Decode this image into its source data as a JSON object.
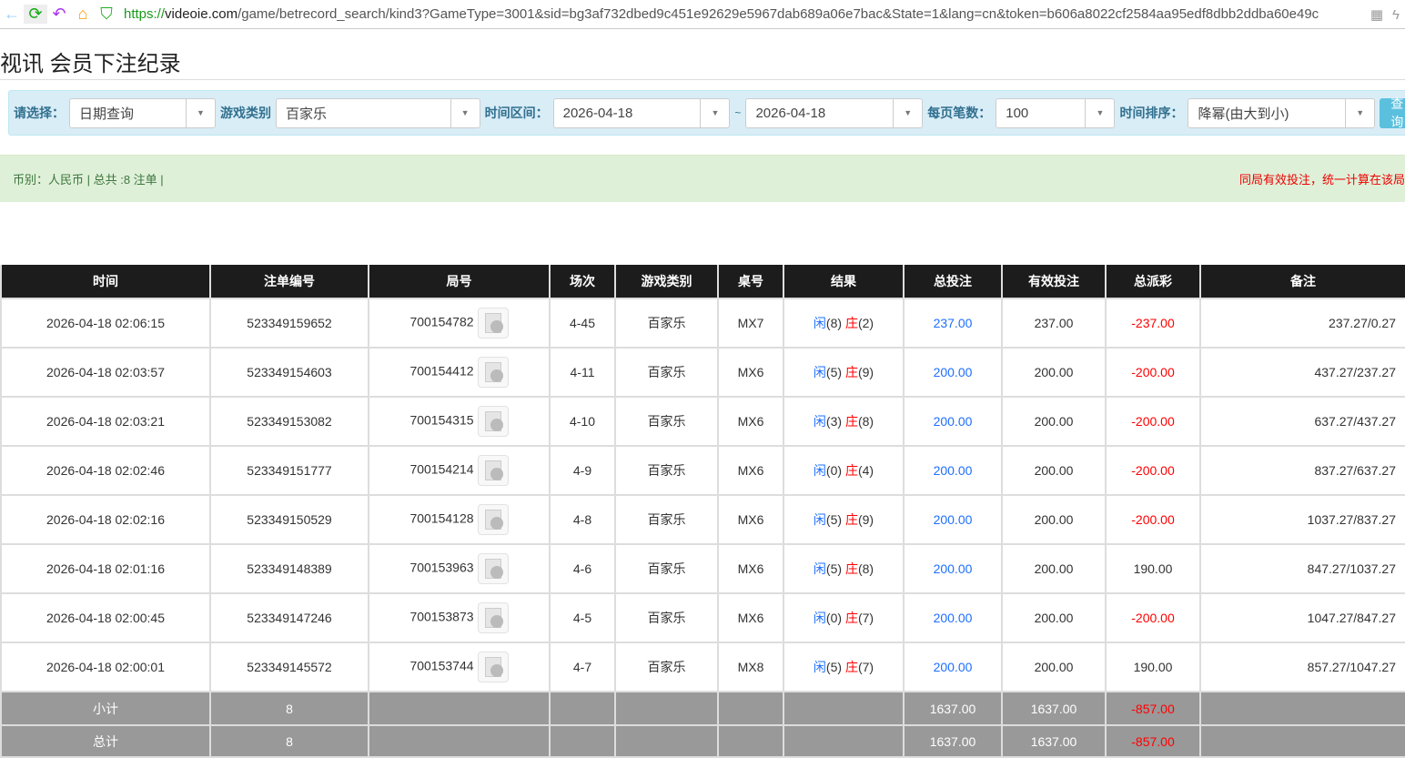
{
  "browser": {
    "url_scheme": "https://",
    "url_domain": "videoie.com",
    "url_path": "/game/betrecord_search/kind3?GameType=3001&sid=bg3af732dbed9c451e92629e5967dab689a06e7bac&State=1&lang=cn&token=b606a8022cf2584aa95edf8dbb2ddba60e49c"
  },
  "page": {
    "title": "视讯 会员下注纪录"
  },
  "filter": {
    "select_label": "请选择：",
    "select_value": "日期查询",
    "game_label": "游戏类别",
    "game_value": "百家乐",
    "range_label": "时间区间：",
    "date_from": "2026-04-18",
    "tilde": "~",
    "date_to": "2026-04-18",
    "per_page_label": "每页笔数：",
    "per_page_value": "100",
    "sort_label": "时间排序：",
    "sort_value": "降幂(由大到小)",
    "query_button": "查询"
  },
  "info": {
    "left": "币别：人民币 | 总共 :8 注单 |",
    "right": "同局有效投注，统一计算在该局"
  },
  "colors": {
    "accent": "#5bc0de",
    "player": "#1e6fff",
    "banker": "#ff0000",
    "header_bg": "#1c1c1c",
    "summary_bg": "#999999"
  },
  "table": {
    "headers": [
      "时间",
      "注单编号",
      "局号",
      "场次",
      "游戏类别",
      "桌号",
      "结果",
      "总投注",
      "有效投注",
      "总派彩",
      "备注"
    ],
    "rows": [
      {
        "time": "2026-04-18 02:06:15",
        "bet_id": "523349159652",
        "round": "700154782",
        "session": "4-45",
        "game": "百家乐",
        "table": "MX7",
        "player": "闲",
        "player_pts": "(8)",
        "banker": "庄",
        "banker_pts": "(2)",
        "total": "237.00",
        "valid": "237.00",
        "payout": "-237.00",
        "note": "237.27/0.27"
      },
      {
        "time": "2026-04-18 02:03:57",
        "bet_id": "523349154603",
        "round": "700154412",
        "session": "4-11",
        "game": "百家乐",
        "table": "MX6",
        "player": "闲",
        "player_pts": "(5)",
        "banker": "庄",
        "banker_pts": "(9)",
        "total": "200.00",
        "valid": "200.00",
        "payout": "-200.00",
        "note": "437.27/237.27"
      },
      {
        "time": "2026-04-18 02:03:21",
        "bet_id": "523349153082",
        "round": "700154315",
        "session": "4-10",
        "game": "百家乐",
        "table": "MX6",
        "player": "闲",
        "player_pts": "(3)",
        "banker": "庄",
        "banker_pts": "(8)",
        "total": "200.00",
        "valid": "200.00",
        "payout": "-200.00",
        "note": "637.27/437.27"
      },
      {
        "time": "2026-04-18 02:02:46",
        "bet_id": "523349151777",
        "round": "700154214",
        "session": "4-9",
        "game": "百家乐",
        "table": "MX6",
        "player": "闲",
        "player_pts": "(0)",
        "banker": "庄",
        "banker_pts": "(4)",
        "total": "200.00",
        "valid": "200.00",
        "payout": "-200.00",
        "note": "837.27/637.27"
      },
      {
        "time": "2026-04-18 02:02:16",
        "bet_id": "523349150529",
        "round": "700154128",
        "session": "4-8",
        "game": "百家乐",
        "table": "MX6",
        "player": "闲",
        "player_pts": "(5)",
        "banker": "庄",
        "banker_pts": "(9)",
        "total": "200.00",
        "valid": "200.00",
        "payout": "-200.00",
        "note": "1037.27/837.27"
      },
      {
        "time": "2026-04-18 02:01:16",
        "bet_id": "523349148389",
        "round": "700153963",
        "session": "4-6",
        "game": "百家乐",
        "table": "MX6",
        "player": "闲",
        "player_pts": "(5)",
        "banker": "庄",
        "banker_pts": "(8)",
        "total": "200.00",
        "valid": "200.00",
        "payout": "190.00",
        "note": "847.27/1037.27"
      },
      {
        "time": "2026-04-18 02:00:45",
        "bet_id": "523349147246",
        "round": "700153873",
        "session": "4-5",
        "game": "百家乐",
        "table": "MX6",
        "player": "闲",
        "player_pts": "(0)",
        "banker": "庄",
        "banker_pts": "(7)",
        "total": "200.00",
        "valid": "200.00",
        "payout": "-200.00",
        "note": "1047.27/847.27"
      },
      {
        "time": "2026-04-18 02:00:01",
        "bet_id": "523349145572",
        "round": "700153744",
        "session": "4-7",
        "game": "百家乐",
        "table": "MX8",
        "player": "闲",
        "player_pts": "(5)",
        "banker": "庄",
        "banker_pts": "(7)",
        "total": "200.00",
        "valid": "200.00",
        "payout": "190.00",
        "note": "857.27/1047.27"
      }
    ],
    "subtotal": {
      "label": "小计",
      "count": "8",
      "total": "1637.00",
      "valid": "1637.00",
      "payout": "-857.00"
    },
    "grandtotal": {
      "label": "总计",
      "count": "8",
      "total": "1637.00",
      "valid": "1637.00",
      "payout": "-857.00"
    }
  }
}
